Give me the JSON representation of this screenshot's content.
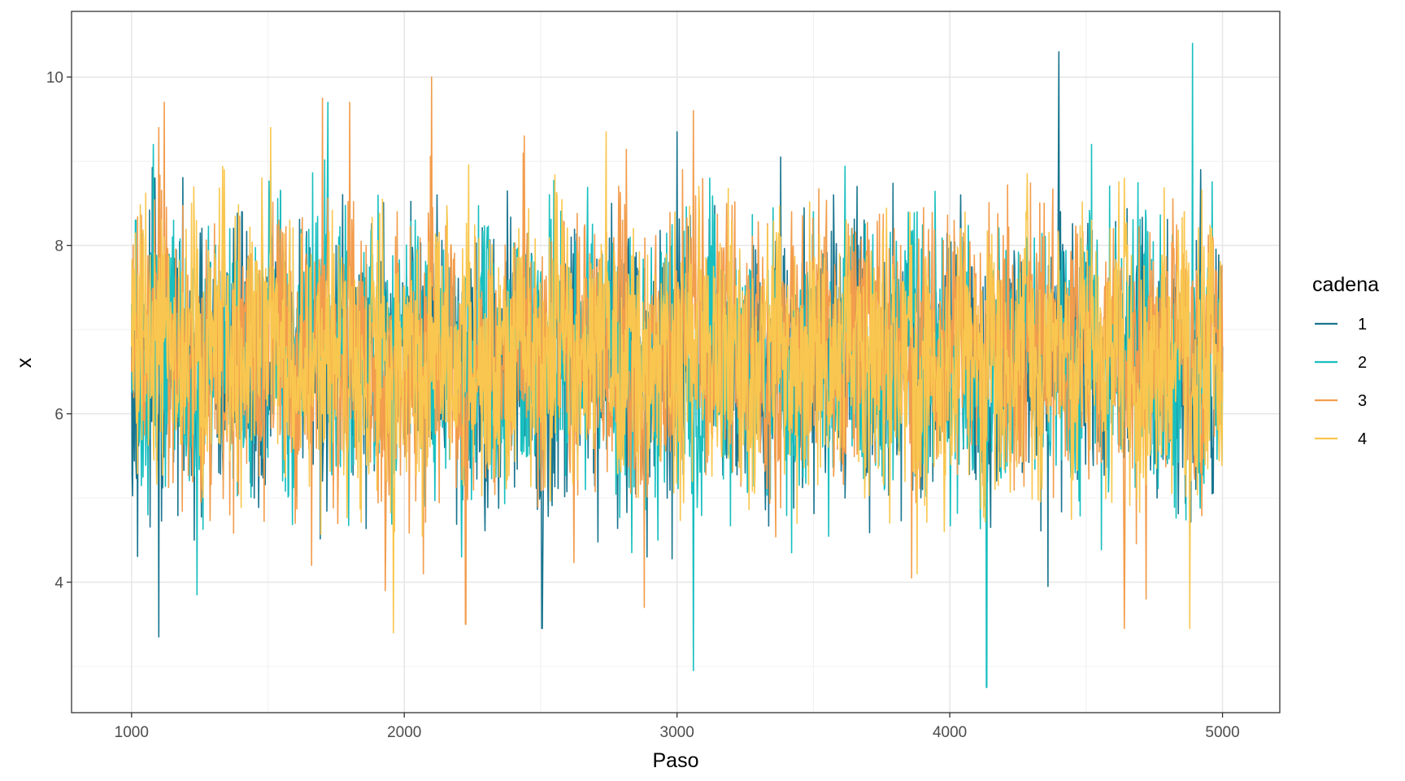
{
  "chart_data": {
    "type": "line",
    "title": "",
    "xlabel": "Paso",
    "ylabel": "x",
    "xlim": [
      780,
      5210
    ],
    "ylim": [
      2.45,
      10.78
    ],
    "xticks": [
      1000,
      2000,
      3000,
      4000,
      5000
    ],
    "xtick_labels": [
      "1000",
      "2000",
      "3000",
      "4000",
      "5000"
    ],
    "yticks": [
      4,
      6,
      8,
      10
    ],
    "ytick_labels": [
      "4",
      "6",
      "8",
      "10"
    ],
    "grid": true,
    "legend": {
      "title": "cadena",
      "position": "right"
    },
    "series": [
      {
        "name": "1",
        "color": "#18758f",
        "mean": 6.6,
        "x": [
          1000,
          1020,
          1045,
          1060,
          1085,
          1100,
          1130,
          1180,
          1230,
          1290,
          1320,
          1360,
          1405,
          1450,
          1520,
          1580,
          1600,
          1650,
          1700,
          1750,
          1850,
          1900,
          2010,
          2100,
          2120,
          2200,
          2250,
          2300,
          2380,
          2450,
          2480,
          2505,
          2560,
          2620,
          2700,
          2760,
          2800,
          2860,
          2890,
          2930,
          2990,
          3000,
          3060,
          3140,
          3200,
          3280,
          3340,
          3380,
          3440,
          3520,
          3600,
          3660,
          3700,
          3780,
          3820,
          3900,
          3960,
          4000,
          4040,
          4100,
          4150,
          4220,
          4300,
          4350,
          4360,
          4400,
          4405,
          4440,
          4500,
          4580,
          4620,
          4700,
          4760,
          4820,
          4880,
          4920,
          4960,
          5000
        ],
        "y": [
          7.0,
          6.4,
          7.3,
          5.6,
          8.8,
          3.35,
          6.2,
          7.1,
          4.5,
          7.6,
          5.3,
          7.4,
          8.4,
          5.0,
          7.2,
          8.2,
          6.3,
          7.3,
          5.2,
          8.0,
          6.0,
          6.9,
          7.0,
          5.7,
          8.6,
          6.2,
          7.5,
          5.2,
          7.6,
          8.0,
          5.5,
          3.45,
          6.9,
          7.9,
          5.8,
          8.5,
          6.1,
          7.7,
          4.3,
          7.2,
          5.5,
          9.35,
          6.5,
          7.6,
          5.4,
          8.0,
          6.2,
          9.05,
          5.5,
          7.7,
          6.8,
          8.7,
          5.5,
          6.7,
          7.7,
          5.1,
          7.3,
          6.6,
          8.6,
          5.9,
          4.65,
          7.6,
          6.1,
          7.2,
          3.95,
          10.3,
          8.4,
          6.3,
          7.8,
          5.9,
          7.2,
          8.0,
          5.0,
          7.6,
          4.6,
          8.9,
          6.2,
          6.8
        ]
      },
      {
        "name": "2",
        "color": "#19bfbf",
        "mean": 6.6,
        "x": [
          1000,
          1015,
          1030,
          1060,
          1080,
          1110,
          1150,
          1200,
          1240,
          1270,
          1300,
          1360,
          1420,
          1480,
          1510,
          1560,
          1620,
          1720,
          1730,
          1760,
          1800,
          1880,
          1950,
          2000,
          2040,
          2110,
          2180,
          2210,
          2290,
          2360,
          2400,
          2480,
          2550,
          2620,
          2700,
          2740,
          2800,
          2860,
          2930,
          2970,
          3000,
          3040,
          3060,
          3120,
          3200,
          3240,
          3300,
          3360,
          3420,
          3500,
          3560,
          3620,
          3680,
          3760,
          3820,
          3880,
          3920,
          3980,
          4060,
          4120,
          4135,
          4160,
          4200,
          4280,
          4340,
          4400,
          4460,
          4520,
          4560,
          4600,
          4660,
          4720,
          4780,
          4820,
          4880,
          4890,
          4920,
          4960,
          5000
        ],
        "y": [
          7.3,
          8.3,
          6.0,
          4.8,
          9.2,
          6.1,
          8.1,
          5.5,
          3.85,
          7.6,
          6.2,
          8.2,
          5.7,
          7.4,
          9.0,
          5.3,
          7.6,
          9.7,
          5.8,
          8.1,
          6.3,
          7.7,
          5.6,
          7.1,
          8.3,
          6.1,
          7.4,
          4.3,
          7.8,
          6.3,
          7.5,
          5.8,
          8.1,
          6.0,
          7.3,
          8.2,
          5.5,
          7.6,
          4.5,
          7.8,
          5.6,
          7.2,
          2.95,
          8.8,
          5.3,
          7.5,
          6.1,
          7.7,
          4.35,
          8.4,
          5.7,
          8.3,
          6.6,
          5.1,
          7.6,
          8.4,
          5.3,
          7.1,
          6.2,
          5.3,
          2.75,
          7.7,
          5.6,
          8.1,
          6.2,
          7.4,
          5.3,
          9.2,
          5.8,
          7.6,
          6.4,
          8.3,
          5.6,
          7.3,
          6.0,
          10.4,
          5.8,
          7.2,
          6.5
        ]
      },
      {
        "name": "3",
        "color": "#f29d4d",
        "mean": 6.7,
        "x": [
          1000,
          1030,
          1070,
          1100,
          1120,
          1140,
          1200,
          1260,
          1320,
          1360,
          1420,
          1480,
          1540,
          1600,
          1640,
          1660,
          1700,
          1760,
          1800,
          1820,
          1860,
          1910,
          1930,
          1980,
          2040,
          2070,
          2100,
          2120,
          2160,
          2200,
          2225,
          2260,
          2330,
          2400,
          2440,
          2500,
          2580,
          2620,
          2680,
          2740,
          2800,
          2880,
          2900,
          2960,
          3020,
          3060,
          3120,
          3180,
          3240,
          3300,
          3360,
          3420,
          3480,
          3540,
          3600,
          3680,
          3740,
          3820,
          3860,
          3900,
          3960,
          4040,
          4100,
          4180,
          4260,
          4340,
          4400,
          4460,
          4540,
          4600,
          4640,
          4660,
          4700,
          4720,
          4740,
          4800,
          4860,
          4920,
          4960,
          5000
        ],
        "y": [
          6.5,
          7.6,
          6.2,
          9.4,
          9.7,
          5.6,
          7.8,
          5.1,
          8.0,
          4.8,
          7.6,
          6.1,
          8.3,
          4.7,
          7.9,
          4.2,
          9.75,
          5.4,
          9.7,
          6.3,
          8.0,
          5.7,
          3.9,
          7.4,
          6.0,
          4.1,
          10.0,
          5.8,
          7.9,
          5.7,
          3.5,
          8.1,
          6.2,
          7.4,
          9.3,
          5.5,
          8.3,
          5.4,
          7.9,
          6.2,
          8.3,
          3.7,
          7.3,
          5.7,
          8.9,
          9.6,
          5.9,
          8.0,
          6.4,
          7.7,
          5.2,
          8.4,
          6.2,
          8.1,
          5.6,
          7.6,
          6.6,
          8.0,
          4.05,
          7.4,
          5.8,
          8.2,
          6.3,
          7.7,
          5.5,
          8.1,
          6.0,
          7.6,
          5.4,
          8.2,
          3.45,
          6.9,
          5.5,
          3.8,
          7.7,
          6.1,
          8.4,
          5.3,
          7.5,
          6.4
        ]
      },
      {
        "name": "4",
        "color": "#f9c74f",
        "mean": 6.6,
        "x": [
          1000,
          1040,
          1080,
          1120,
          1170,
          1220,
          1260,
          1300,
          1340,
          1400,
          1460,
          1510,
          1540,
          1580,
          1620,
          1680,
          1720,
          1760,
          1820,
          1880,
          1920,
          1960,
          2000,
          2060,
          2120,
          2180,
          2240,
          2300,
          2360,
          2420,
          2500,
          2560,
          2620,
          2680,
          2740,
          2780,
          2840,
          2900,
          2960,
          3020,
          3080,
          3140,
          3200,
          3260,
          3320,
          3380,
          3440,
          3500,
          3560,
          3620,
          3680,
          3740,
          3800,
          3860,
          3880,
          3920,
          3980,
          4040,
          4100,
          4160,
          4220,
          4280,
          4340,
          4400,
          4460,
          4520,
          4580,
          4640,
          4700,
          4760,
          4820,
          4860,
          4880,
          4920,
          4960,
          5000
        ],
        "y": [
          6.8,
          7.3,
          5.7,
          8.1,
          6.2,
          8.5,
          5.3,
          7.1,
          8.9,
          5.9,
          7.8,
          9.4,
          6.1,
          8.3,
          5.6,
          7.4,
          6.0,
          8.0,
          5.6,
          7.6,
          8.55,
          3.4,
          7.5,
          5.6,
          8.1,
          6.2,
          7.8,
          5.4,
          7.1,
          8.2,
          5.9,
          8.6,
          6.0,
          7.6,
          9.35,
          5.7,
          8.2,
          6.3,
          7.9,
          5.9,
          8.7,
          6.1,
          8.3,
          5.8,
          7.6,
          8.1,
          4.7,
          7.7,
          6.0,
          8.3,
          5.9,
          7.3,
          6.2,
          8.0,
          4.1,
          7.6,
          4.6,
          8.2,
          6.1,
          7.4,
          5.5,
          8.4,
          6.2,
          7.8,
          5.9,
          8.3,
          6.0,
          8.8,
          5.3,
          7.5,
          6.3,
          8.4,
          3.45,
          6.9,
          8.2,
          6.5
        ]
      }
    ]
  }
}
